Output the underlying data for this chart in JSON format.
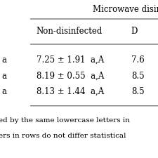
{
  "title_text": "Microwave disinf",
  "col_header1": "Non-disinfected",
  "col_header2": "D",
  "rows": [
    [
      "7.25 ± 1.91  a,A",
      "7.6"
    ],
    [
      "8.19 ± 0.55  a,A",
      "8.5"
    ],
    [
      "8.13 ± 1.44  a,A",
      "8.5"
    ]
  ],
  "footnote1": "ed by the same lowercase letters in",
  "footnote2": "ers in rows do not differ statistical",
  "bg_color": "#ffffff",
  "text_color": "#000000",
  "font_size": 8.5,
  "line_color": "#555555",
  "left_label": "a"
}
